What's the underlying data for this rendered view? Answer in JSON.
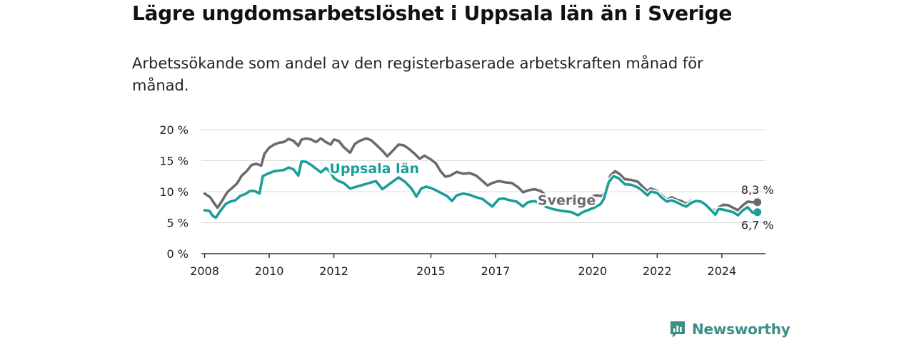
{
  "title": "Lägre ungdomsarbetslöshet i Uppsala län än i Sverige",
  "subtitle": "Arbetssökande som andel av den registerbaserade arbetskraften månad för månad.",
  "brand": {
    "name": "Newsworthy",
    "icon": "newsworthy-logo-icon",
    "color": "#3c8f86"
  },
  "chart_data": {
    "type": "line",
    "x_unit": "year",
    "xlim": [
      2007.9,
      2025.35
    ],
    "ylim": [
      0,
      20
    ],
    "y_ticks": [
      0,
      5,
      10,
      15,
      20
    ],
    "y_tick_labels": [
      "0 %",
      "5 %",
      "10 %",
      "15 %",
      "20 %"
    ],
    "x_ticks": [
      2008,
      2010,
      2012,
      2015,
      2017,
      2020,
      2022,
      2024
    ],
    "x_tick_labels": [
      "2008",
      "2010",
      "2012",
      "2015",
      "2017",
      "2020",
      "2022",
      "2024"
    ],
    "grid": true,
    "series": [
      {
        "name": "Sverige",
        "color": "#6b6b6e",
        "end_label": "8,3 %",
        "points": [
          [
            2008.0,
            9.7
          ],
          [
            2008.17,
            9.1
          ],
          [
            2008.3,
            8.1
          ],
          [
            2008.4,
            7.4
          ],
          [
            2008.55,
            8.6
          ],
          [
            2008.7,
            9.9
          ],
          [
            2008.85,
            10.6
          ],
          [
            2009.0,
            11.3
          ],
          [
            2009.15,
            12.6
          ],
          [
            2009.3,
            13.3
          ],
          [
            2009.45,
            14.3
          ],
          [
            2009.6,
            14.5
          ],
          [
            2009.75,
            14.2
          ],
          [
            2009.85,
            16.1
          ],
          [
            2010.0,
            17.1
          ],
          [
            2010.15,
            17.6
          ],
          [
            2010.3,
            17.9
          ],
          [
            2010.45,
            18.0
          ],
          [
            2010.6,
            18.5
          ],
          [
            2010.75,
            18.2
          ],
          [
            2010.9,
            17.4
          ],
          [
            2011.0,
            18.4
          ],
          [
            2011.15,
            18.6
          ],
          [
            2011.3,
            18.4
          ],
          [
            2011.45,
            18.0
          ],
          [
            2011.6,
            18.6
          ],
          [
            2011.75,
            18.0
          ],
          [
            2011.9,
            17.6
          ],
          [
            2012.0,
            18.4
          ],
          [
            2012.15,
            18.2
          ],
          [
            2012.3,
            17.2
          ],
          [
            2012.5,
            16.3
          ],
          [
            2012.65,
            17.7
          ],
          [
            2012.8,
            18.2
          ],
          [
            2013.0,
            18.6
          ],
          [
            2013.15,
            18.3
          ],
          [
            2013.3,
            17.6
          ],
          [
            2013.5,
            16.6
          ],
          [
            2013.65,
            15.7
          ],
          [
            2013.8,
            16.5
          ],
          [
            2014.0,
            17.6
          ],
          [
            2014.15,
            17.5
          ],
          [
            2014.3,
            17.0
          ],
          [
            2014.5,
            16.1
          ],
          [
            2014.65,
            15.3
          ],
          [
            2014.8,
            15.8
          ],
          [
            2015.0,
            15.2
          ],
          [
            2015.15,
            14.6
          ],
          [
            2015.3,
            13.3
          ],
          [
            2015.45,
            12.4
          ],
          [
            2015.6,
            12.6
          ],
          [
            2015.8,
            13.2
          ],
          [
            2016.0,
            12.9
          ],
          [
            2016.2,
            13.0
          ],
          [
            2016.4,
            12.6
          ],
          [
            2016.6,
            11.7
          ],
          [
            2016.75,
            11.0
          ],
          [
            2016.9,
            11.4
          ],
          [
            2017.1,
            11.7
          ],
          [
            2017.3,
            11.5
          ],
          [
            2017.5,
            11.4
          ],
          [
            2017.7,
            10.7
          ],
          [
            2017.85,
            9.9
          ],
          [
            2018.0,
            10.2
          ],
          [
            2018.2,
            10.4
          ],
          [
            2018.4,
            10.1
          ],
          [
            2018.55,
            9.4
          ],
          [
            2018.7,
            8.8
          ],
          [
            2018.85,
            8.5
          ],
          [
            2019.2,
            8.6
          ],
          [
            2019.5,
            8.5
          ],
          [
            2019.8,
            8.8
          ],
          [
            2019.9,
            9.1
          ],
          [
            2020.1,
            9.4
          ],
          [
            2020.3,
            9.3
          ],
          [
            2020.45,
            10.5
          ],
          [
            2020.55,
            12.6
          ],
          [
            2020.7,
            13.3
          ],
          [
            2020.85,
            12.8
          ],
          [
            2021.0,
            12.0
          ],
          [
            2021.2,
            11.9
          ],
          [
            2021.4,
            11.6
          ],
          [
            2021.55,
            10.8
          ],
          [
            2021.7,
            10.1
          ],
          [
            2021.8,
            10.5
          ],
          [
            2022.0,
            10.1
          ],
          [
            2022.15,
            9.4
          ],
          [
            2022.3,
            8.7
          ],
          [
            2022.45,
            9.1
          ],
          [
            2022.6,
            8.7
          ],
          [
            2022.75,
            8.5
          ],
          [
            2022.9,
            8.0
          ],
          [
            2023.05,
            8.5
          ],
          [
            2023.2,
            8.6
          ],
          [
            2023.35,
            8.5
          ],
          [
            2023.5,
            8.0
          ],
          [
            2023.65,
            7.3
          ],
          [
            2023.8,
            6.9
          ],
          [
            2023.9,
            7.5
          ],
          [
            2024.05,
            7.9
          ],
          [
            2024.2,
            7.8
          ],
          [
            2024.35,
            7.4
          ],
          [
            2024.5,
            7.0
          ],
          [
            2024.65,
            7.8
          ],
          [
            2024.8,
            8.4
          ],
          [
            2024.95,
            8.3
          ],
          [
            2025.1,
            8.3
          ]
        ]
      },
      {
        "name": "Uppsala län",
        "color": "#1a9e98",
        "end_label": "6,7 %",
        "points": [
          [
            2008.0,
            7.0
          ],
          [
            2008.15,
            6.9
          ],
          [
            2008.25,
            6.1
          ],
          [
            2008.35,
            5.8
          ],
          [
            2008.5,
            7.0
          ],
          [
            2008.65,
            8.0
          ],
          [
            2008.8,
            8.4
          ],
          [
            2008.95,
            8.6
          ],
          [
            2009.1,
            9.3
          ],
          [
            2009.25,
            9.6
          ],
          [
            2009.4,
            10.1
          ],
          [
            2009.55,
            10.1
          ],
          [
            2009.7,
            9.7
          ],
          [
            2009.8,
            12.5
          ],
          [
            2010.0,
            13.0
          ],
          [
            2010.15,
            13.3
          ],
          [
            2010.3,
            13.4
          ],
          [
            2010.45,
            13.5
          ],
          [
            2010.6,
            13.9
          ],
          [
            2010.75,
            13.6
          ],
          [
            2010.9,
            12.6
          ],
          [
            2011.0,
            14.9
          ],
          [
            2011.15,
            14.8
          ],
          [
            2011.3,
            14.3
          ],
          [
            2011.45,
            13.7
          ],
          [
            2011.6,
            13.1
          ],
          [
            2011.75,
            13.8
          ],
          [
            2011.9,
            13.1
          ],
          [
            2012.0,
            12.2
          ],
          [
            2012.15,
            11.7
          ],
          [
            2012.3,
            11.4
          ],
          [
            2012.5,
            10.5
          ],
          [
            2013.3,
            11.7
          ],
          [
            2013.5,
            10.4
          ],
          [
            2014.0,
            12.3
          ],
          [
            2014.2,
            11.6
          ],
          [
            2014.4,
            10.5
          ],
          [
            2014.55,
            9.2
          ],
          [
            2014.7,
            10.5
          ],
          [
            2014.85,
            10.8
          ],
          [
            2015.0,
            10.6
          ],
          [
            2015.2,
            10.1
          ],
          [
            2015.35,
            9.7
          ],
          [
            2015.5,
            9.3
          ],
          [
            2015.65,
            8.5
          ],
          [
            2015.8,
            9.4
          ],
          [
            2016.0,
            9.7
          ],
          [
            2016.2,
            9.5
          ],
          [
            2016.4,
            9.1
          ],
          [
            2016.6,
            8.8
          ],
          [
            2016.75,
            8.2
          ],
          [
            2016.9,
            7.6
          ],
          [
            2017.1,
            8.8
          ],
          [
            2017.25,
            8.9
          ],
          [
            2017.45,
            8.6
          ],
          [
            2017.65,
            8.4
          ],
          [
            2017.85,
            7.6
          ],
          [
            2018.0,
            8.3
          ],
          [
            2018.2,
            8.5
          ],
          [
            2018.4,
            8.0
          ],
          [
            2018.55,
            7.6
          ],
          [
            2018.7,
            7.3
          ],
          [
            2018.85,
            7.1
          ],
          [
            2019.05,
            6.9
          ],
          [
            2019.35,
            6.7
          ],
          [
            2019.55,
            6.2
          ],
          [
            2019.7,
            6.7
          ],
          [
            2019.85,
            7.0
          ],
          [
            2020.05,
            7.4
          ],
          [
            2020.25,
            8.0
          ],
          [
            2020.35,
            8.8
          ],
          [
            2020.5,
            11.5
          ],
          [
            2020.65,
            12.5
          ],
          [
            2020.8,
            12.2
          ],
          [
            2021.0,
            11.2
          ],
          [
            2021.2,
            11.1
          ],
          [
            2021.4,
            10.7
          ],
          [
            2021.55,
            10.1
          ],
          [
            2021.7,
            9.4
          ],
          [
            2021.8,
            10.0
          ],
          [
            2022.0,
            9.8
          ],
          [
            2022.15,
            9.0
          ],
          [
            2022.3,
            8.4
          ],
          [
            2022.45,
            8.6
          ],
          [
            2022.6,
            8.3
          ],
          [
            2022.75,
            7.9
          ],
          [
            2022.9,
            7.6
          ],
          [
            2023.05,
            8.2
          ],
          [
            2023.2,
            8.5
          ],
          [
            2023.35,
            8.4
          ],
          [
            2023.5,
            7.9
          ],
          [
            2023.65,
            7.1
          ],
          [
            2023.8,
            6.3
          ],
          [
            2023.9,
            7.2
          ],
          [
            2024.05,
            7.1
          ],
          [
            2024.2,
            6.9
          ],
          [
            2024.35,
            6.7
          ],
          [
            2024.5,
            6.2
          ],
          [
            2024.65,
            7.0
          ],
          [
            2024.8,
            7.5
          ],
          [
            2024.95,
            6.6
          ],
          [
            2025.1,
            6.7
          ]
        ]
      }
    ],
    "inline_labels": [
      {
        "series": "Uppsala län",
        "text": "Uppsala län",
        "x": 2013.25,
        "y": 13.0
      },
      {
        "series": "Sverige",
        "text": "Sverige",
        "x": 2019.2,
        "y": 7.9
      }
    ]
  }
}
